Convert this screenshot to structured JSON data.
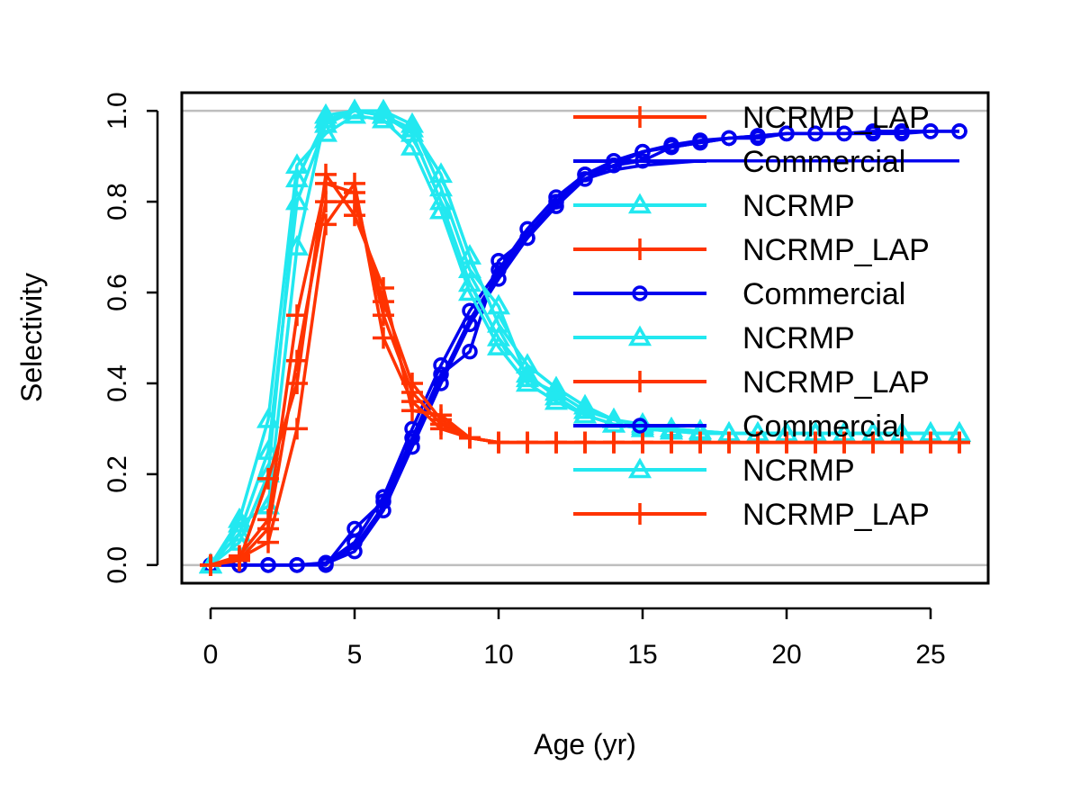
{
  "chart_data": {
    "type": "line",
    "title": "",
    "xlabel": "Age (yr)",
    "ylabel": "Selectivity",
    "xlim": [
      -1,
      27
    ],
    "ylim": [
      -0.04,
      1.04
    ],
    "x_ticks": [
      0,
      5,
      10,
      15,
      20,
      25
    ],
    "y_ticks": [
      0.0,
      0.2,
      0.4,
      0.6,
      0.8,
      1.0
    ],
    "y_tick_labels": [
      "0.0",
      "0.2",
      "0.4",
      "0.6",
      "0.8",
      "1.0"
    ],
    "reference_lines": [
      0,
      1
    ],
    "grid": false,
    "legend_position": "top-right",
    "colors": {
      "Commercial": "#0000ee",
      "NCRMP": "#22e8f0",
      "NCRMP_LAP": "#ff3300",
      "reference": "#bebebe"
    },
    "legend": [
      {
        "label": "NCRMP_LAP",
        "color": "#ff3300",
        "marker": "plus"
      },
      {
        "label": "Commercial",
        "color": "#0000ee",
        "marker": "none"
      },
      {
        "label": "NCRMP",
        "color": "#22e8f0",
        "marker": "triangle"
      },
      {
        "label": "NCRMP_LAP",
        "color": "#ff3300",
        "marker": "plus"
      },
      {
        "label": "Commercial",
        "color": "#0000ee",
        "marker": "circle"
      },
      {
        "label": "NCRMP",
        "color": "#22e8f0",
        "marker": "triangle"
      },
      {
        "label": "NCRMP_LAP",
        "color": "#ff3300",
        "marker": "plus"
      },
      {
        "label": "Commercial",
        "color": "#0000ee",
        "marker": "circle"
      },
      {
        "label": "NCRMP",
        "color": "#22e8f0",
        "marker": "triangle"
      },
      {
        "label": "NCRMP_LAP",
        "color": "#ff3300",
        "marker": "plus"
      }
    ],
    "x": [
      0,
      1,
      2,
      3,
      4,
      5,
      6,
      7,
      8,
      9,
      10,
      11,
      12,
      13,
      14,
      15,
      16,
      17,
      18,
      19,
      20,
      21,
      22,
      23,
      24,
      25,
      26
    ],
    "series": [
      {
        "fleet": "Commercial",
        "marker": "circle",
        "values": [
          0,
          0,
          0,
          0,
          0,
          0.08,
          0.14,
          0.28,
          0.42,
          0.47,
          0.67,
          0.72,
          0.8,
          0.86,
          0.88,
          0.89,
          0.92,
          0.93,
          0.94,
          0.94,
          0.95,
          0.95,
          0.95,
          0.95,
          0.95,
          0.955,
          0.955
        ]
      },
      {
        "fleet": "Commercial",
        "marker": "circle",
        "values": [
          0,
          0,
          0,
          0,
          0.005,
          0.05,
          0.15,
          0.3,
          0.44,
          0.56,
          0.65,
          0.74,
          0.81,
          0.86,
          0.89,
          0.91,
          0.925,
          0.935,
          0.94,
          0.945,
          0.95,
          0.95,
          0.95,
          0.95,
          0.955,
          0.955,
          0.955
        ]
      },
      {
        "fleet": "Commercial",
        "marker": "circle",
        "values": [
          0,
          0,
          0,
          0,
          0.003,
          0.03,
          0.12,
          0.26,
          0.4,
          0.53,
          0.63,
          0.72,
          0.79,
          0.85,
          0.88,
          0.91,
          0.92,
          0.93,
          0.94,
          0.945,
          0.95,
          0.95,
          0.95,
          0.955,
          0.955,
          0.955,
          0.955
        ]
      },
      {
        "fleet": "Commercial",
        "marker": "none",
        "values": [
          0,
          0,
          0,
          0,
          0.004,
          0.04,
          0.13,
          0.27,
          0.41,
          0.54,
          0.64,
          0.73,
          0.8,
          0.85,
          0.87,
          0.88,
          0.885,
          0.89,
          0.89,
          0.89,
          0.89,
          0.89,
          0.89,
          0.89,
          0.89,
          0.89,
          0.89
        ]
      },
      {
        "fleet": "NCRMP",
        "marker": "triangle",
        "values": [
          0,
          0.09,
          0.13,
          0.7,
          0.99,
          1.0,
          1.0,
          0.97,
          0.83,
          0.65,
          0.57,
          0.41,
          0.38,
          0.34,
          0.32,
          0.31,
          0.3,
          0.295,
          0.29,
          0.29,
          0.29,
          0.29,
          0.29,
          0.29,
          0.29,
          0.29,
          0.29
        ]
      },
      {
        "fleet": "NCRMP",
        "marker": "triangle",
        "values": [
          0,
          0.05,
          0.2,
          0.85,
          0.98,
          1.0,
          0.99,
          0.95,
          0.8,
          0.62,
          0.5,
          0.42,
          0.37,
          0.33,
          0.31,
          0.3,
          0.295,
          0.29,
          0.29,
          0.29,
          0.29,
          0.29,
          0.29,
          0.29,
          0.29,
          0.29,
          0.29
        ]
      },
      {
        "fleet": "NCRMP",
        "marker": "triangle",
        "values": [
          0,
          0.1,
          0.32,
          0.88,
          0.95,
          0.99,
          0.98,
          0.92,
          0.78,
          0.6,
          0.48,
          0.4,
          0.36,
          0.33,
          0.31,
          0.3,
          0.295,
          0.29,
          0.29,
          0.29,
          0.29,
          0.29,
          0.29,
          0.29,
          0.29,
          0.29,
          0.29
        ]
      },
      {
        "fleet": "NCRMP",
        "marker": "triangle",
        "values": [
          0,
          0.07,
          0.25,
          0.8,
          0.97,
          1.0,
          0.99,
          0.96,
          0.86,
          0.68,
          0.53,
          0.44,
          0.39,
          0.35,
          0.32,
          0.305,
          0.3,
          0.295,
          0.29,
          0.29,
          0.29,
          0.29,
          0.29,
          0.29,
          0.29,
          0.29,
          0.29
        ]
      },
      {
        "fleet": "NCRMP_LAP",
        "marker": "plus",
        "values": [
          0,
          0.01,
          0.19,
          0.4,
          0.86,
          0.77,
          0.61,
          0.34,
          0.33,
          0.28,
          0.27,
          0.27,
          0.27,
          0.27,
          0.27,
          0.27,
          0.27,
          0.27,
          0.27,
          0.27,
          0.27,
          0.27,
          0.27,
          0.27,
          0.27,
          0.27,
          0.27
        ]
      },
      {
        "fleet": "NCRMP_LAP",
        "marker": "plus",
        "values": [
          0,
          0.02,
          0.1,
          0.55,
          0.84,
          0.82,
          0.55,
          0.38,
          0.31,
          0.28,
          0.27,
          0.27,
          0.27,
          0.27,
          0.27,
          0.27,
          0.27,
          0.27,
          0.27,
          0.27,
          0.27,
          0.27,
          0.27,
          0.27,
          0.27,
          0.27,
          0.27
        ]
      },
      {
        "fleet": "NCRMP_LAP",
        "marker": "plus",
        "values": [
          0,
          0.015,
          0.05,
          0.3,
          0.75,
          0.84,
          0.5,
          0.36,
          0.3,
          0.28,
          0.27,
          0.27,
          0.27,
          0.27,
          0.27,
          0.27,
          0.27,
          0.27,
          0.27,
          0.27,
          0.27,
          0.27,
          0.27,
          0.27,
          0.27,
          0.27,
          0.27
        ]
      },
      {
        "fleet": "NCRMP_LAP",
        "marker": "plus",
        "values": [
          0,
          0.012,
          0.08,
          0.45,
          0.8,
          0.8,
          0.58,
          0.4,
          0.32,
          0.28,
          0.27,
          0.27,
          0.27,
          0.27,
          0.27,
          0.27,
          0.27,
          0.27,
          0.27,
          0.27,
          0.27,
          0.27,
          0.27,
          0.27,
          0.27,
          0.27,
          0.27
        ]
      }
    ]
  }
}
